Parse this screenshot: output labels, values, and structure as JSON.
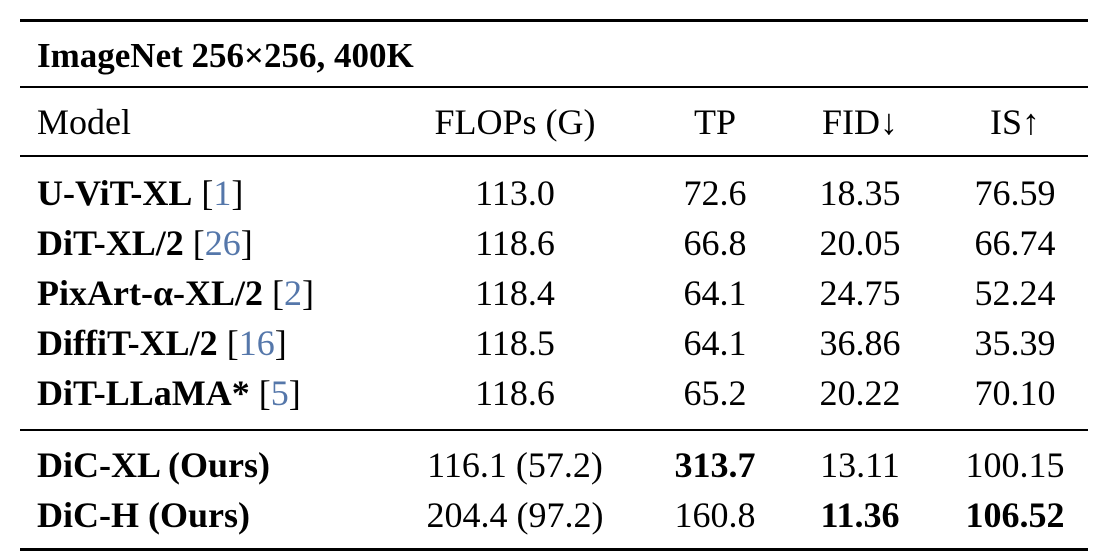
{
  "caption": "ImageNet 256×256, 400K",
  "headers": {
    "model": "Model",
    "flops": "FLOPs (G)",
    "tp": "TP",
    "fid": "FID↓",
    "is": "IS↑"
  },
  "rows": [
    {
      "model": "U-ViT-XL",
      "ref": "1",
      "flops": "113.0",
      "tp": "72.6",
      "fid": "18.35",
      "is": "76.59"
    },
    {
      "model": "DiT-XL/2",
      "ref": "26",
      "flops": "118.6",
      "tp": "66.8",
      "fid": "20.05",
      "is": "66.74"
    },
    {
      "model": "PixArt-α-XL/2",
      "ref": "2",
      "flops": "118.4",
      "tp": "64.1",
      "fid": "24.75",
      "is": "52.24"
    },
    {
      "model": "DiffiT-XL/2",
      "ref": "16",
      "flops": "118.5",
      "tp": "64.1",
      "fid": "36.86",
      "is": "35.39"
    },
    {
      "model": "DiT-LLaMA*",
      "ref": "5",
      "flops": "118.6",
      "tp": "65.2",
      "fid": "20.22",
      "is": "70.10"
    }
  ],
  "ours": [
    {
      "model": "DiC-XL (Ours)",
      "flops": "116.1 (57.2)",
      "tp": "313.7",
      "fid": "13.11",
      "is": "100.15",
      "bold": [
        "tp"
      ]
    },
    {
      "model": "DiC-H (Ours)",
      "flops": "204.4 (97.2)",
      "tp": "160.8",
      "fid": "11.36",
      "is": "106.52",
      "bold": [
        "fid",
        "is"
      ]
    }
  ],
  "colors": {
    "reference_link": "#5577aa",
    "rule": "#000000"
  }
}
